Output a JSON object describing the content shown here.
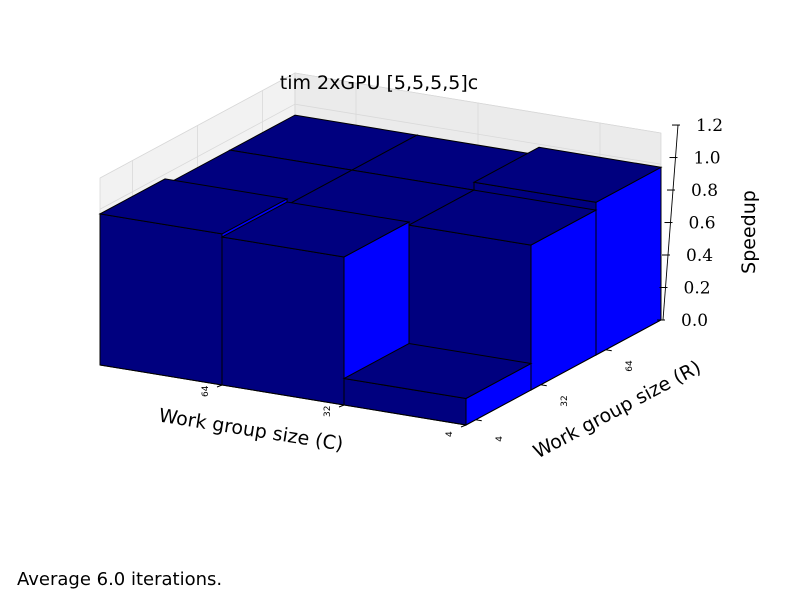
{
  "chart_data": {
    "type": "bar3d",
    "title": "tim 2xGPU [5,5,5,5]c",
    "xlabel": "Work group size (C)",
    "ylabel": "Work group size (R)",
    "zlabel": "Speedup",
    "x_categories": [
      "4",
      "32",
      "64"
    ],
    "y_categories": [
      "4",
      "32",
      "64"
    ],
    "z_ticks": [
      "0.0",
      "0.2",
      "0.4",
      "0.6",
      "0.8",
      "1.0",
      "1.2"
    ],
    "zlim": [
      0,
      1.2
    ],
    "grid": true,
    "colors": {
      "top_front": "#00007f",
      "side": "#0000ff",
      "edge": "#000000",
      "pane": "#f2f2f2",
      "grid": "#d9d9d9"
    },
    "values": [
      {
        "c": "64",
        "r": "4",
        "speedup": 0.97
      },
      {
        "c": "32",
        "r": "4",
        "speedup": 0.95
      },
      {
        "c": "4",
        "r": "4",
        "speedup": 0.17
      },
      {
        "c": "64",
        "r": "32",
        "speedup": 0.93
      },
      {
        "c": "32",
        "r": "32",
        "speedup": 0.93
      },
      {
        "c": "4",
        "r": "32",
        "speedup": 0.93
      },
      {
        "c": "64",
        "r": "64",
        "speedup": 0.93
      },
      {
        "c": "32",
        "r": "64",
        "speedup": 0.93
      },
      {
        "c": "4",
        "r": "64",
        "speedup": 0.98
      }
    ]
  },
  "caption": "Average 6.0 iterations."
}
